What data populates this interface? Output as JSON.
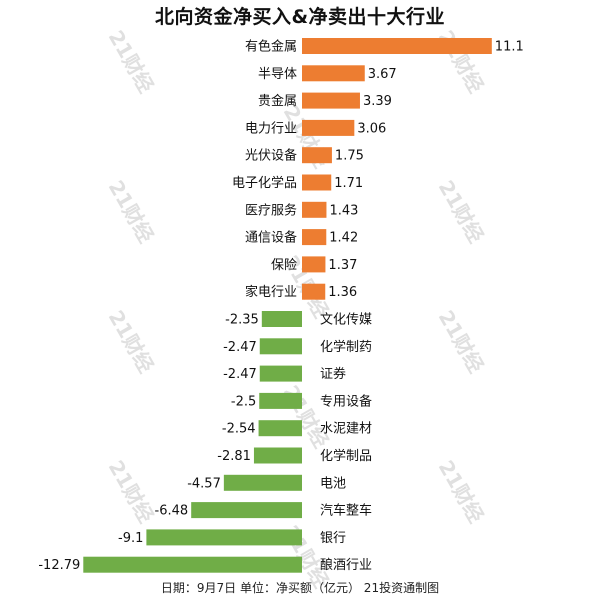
{
  "chart_data": {
    "type": "bar",
    "orientation": "horizontal",
    "title": "北向资金净买入&净卖出十大行业",
    "footer": "日期：9月7日 单位：净买额（亿元） 21投资通制图",
    "watermark": "21财经",
    "categories": [
      "有色金属",
      "半导体",
      "贵金属",
      "电力行业",
      "光伏设备",
      "电子化学品",
      "医疗服务",
      "通信设备",
      "保险",
      "家电行业",
      "文化传媒",
      "化学制药",
      "证券",
      "专用设备",
      "水泥建材",
      "化学制品",
      "电池",
      "汽车整车",
      "银行",
      "酿酒行业"
    ],
    "values": [
      11.1,
      3.67,
      3.39,
      3.06,
      1.75,
      1.71,
      1.43,
      1.42,
      1.37,
      1.36,
      -2.35,
      -2.47,
      -2.47,
      -2.5,
      -2.54,
      -2.81,
      -4.57,
      -6.48,
      -9.1,
      -12.79
    ],
    "value_labels": [
      "11.1",
      "3.67",
      "3.39",
      "3.06",
      "1.75",
      "1.71",
      "1.43",
      "1.42",
      "1.37",
      "1.36",
      "-2.35",
      "-2.47",
      "-2.47",
      "-2.5",
      "-2.54",
      "-2.81",
      "-4.57",
      "-6.48",
      "-9.1",
      "-12.79"
    ],
    "colors": {
      "positive": "#ED7D31",
      "negative": "#70AD47",
      "text": "#111111",
      "watermark": "#c8c8c8"
    },
    "grid": false,
    "legend": "none"
  }
}
